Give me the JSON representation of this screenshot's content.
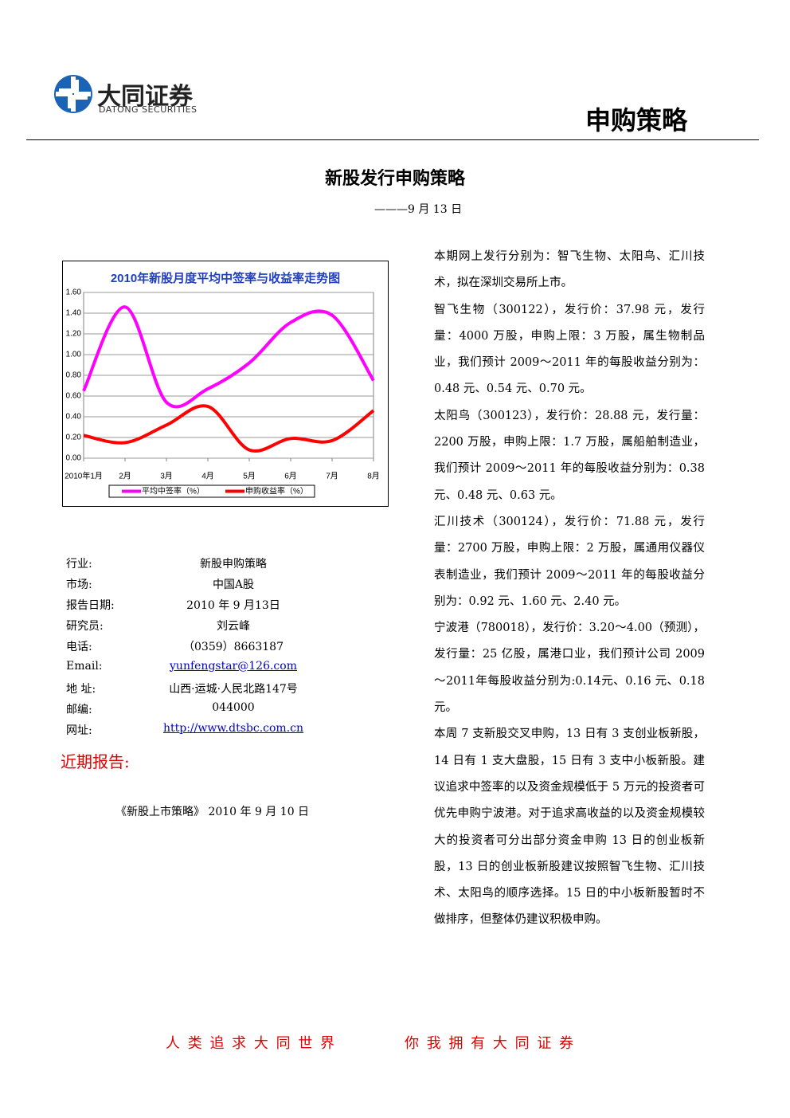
{
  "header": {
    "logo_cn": "大同证券",
    "logo_en": "DATONG SECURITIES",
    "category": "申购策略"
  },
  "title": "新股发行申购策略",
  "date": "———9 月 13 日",
  "chart_data": {
    "type": "line",
    "title": "2010年新股月度平均中签率与收益率走势图",
    "categories": [
      "2010年1月",
      "2月",
      "3月",
      "4月",
      "5月",
      "6月",
      "7月",
      "8月"
    ],
    "series": [
      {
        "name": "平均中签率（%）",
        "color": "#ff00ff",
        "values": [
          0.65,
          1.46,
          0.54,
          0.67,
          0.92,
          1.31,
          1.38,
          0.75
        ]
      },
      {
        "name": "申购收益率（%）",
        "color": "#ff0000",
        "values": [
          0.22,
          0.15,
          0.32,
          0.5,
          0.08,
          0.19,
          0.17,
          0.46
        ]
      }
    ],
    "ylim": [
      0,
      1.6
    ],
    "yticks": [
      {
        "value": 0,
        "label": "0.00"
      },
      {
        "value": 0.2,
        "label": "0.20"
      },
      {
        "value": 0.4,
        "label": "0.40"
      },
      {
        "value": 0.6,
        "label": "0.60"
      },
      {
        "value": 0.8,
        "label": "0.80"
      },
      {
        "value": 1,
        "label": "1.00"
      },
      {
        "value": 1.2,
        "label": "1.20"
      },
      {
        "value": 1.4,
        "label": "1.40"
      },
      {
        "value": 1.6,
        "label": "1.60"
      }
    ],
    "grid": true,
    "legend": "bottom"
  },
  "info": [
    [
      "行业:",
      "新股申购策略"
    ],
    [
      "市场:",
      "中国A股"
    ],
    [
      "报告日期:",
      "2010 年 9 月13日"
    ],
    [
      "研究员:",
      "刘云峰"
    ],
    [
      "电话:",
      "（0359）8663187"
    ],
    [
      "Email:",
      "yunfengstar@126.com"
    ],
    [
      "地 址:",
      "山西·运城·人民北路147号"
    ],
    [
      "邮编:",
      "044000"
    ],
    [
      "网址:",
      "http://www.dtsbc.com.cn"
    ]
  ],
  "recent": {
    "heading": "近期报告:",
    "items": [
      "《新股上市策略》 2010 年 9 月 10 日"
    ]
  },
  "paragraphs": [
    "本期网上发行分别为：智飞生物、太阳鸟、汇川技术，拟在深圳交易所上市。",
    "智飞生物（300122），发行价：37.98 元，发行量：4000 万股，申购上限：3 万股，属生物制品业，我们预计 2009～2011 年的每股收益分别为：0.48 元、0.54 元、0.70 元。",
    "太阳鸟（300123），发行价：28.88 元，发行量：2200 万股，申购上限：1.7 万股，属船舶制造业，我们预计 2009～2011 年的每股收益分别为：0.38 元、0.48 元、0.63 元。",
    "汇川技术（300124），发行价：71.88 元，发行量：2700 万股，申购上限：2 万股，属通用仪器仪表制造业，我们预计 2009～2011 年的每股收益分别为：0.92 元、1.60 元、2.40 元。",
    "宁波港（780018），发行价：3.20～4.00（预测），发行量：25 亿股，属港口业，我们预计公司 2009～2011年每股收益分别为:0.14元、0.16 元、0.18 元。",
    "本周 7 支新股交叉申购，13 日有 3 支创业板新股，14 日有 1 支大盘股，15 日有 3 支中小板新股。建议追求中签率的以及资金规模低于 5 万元的投资者可优先申购宁波港。对于追求高收益的以及资金规模较大的投资者可分出部分资金申购 13 日的创业板新股，13 日的创业板新股建议按照智飞生物、汇川技术、太阳鸟的顺序选择。15 日的中小板新股暂时不做排序，但整体仍建议积极申购。"
  ],
  "footer": [
    "人 类 追 求 大 同 世 界",
    "你 我 拥 有 大 同 证 券"
  ]
}
